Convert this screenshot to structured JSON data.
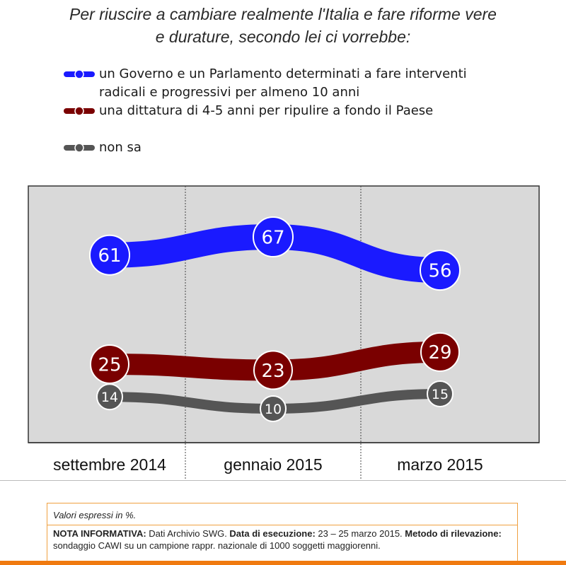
{
  "title_line1": "Per riuscire a cambiare realmente l'Italia e fare riforme vere",
  "title_line2": "e durature, secondo lei ci vorrebbe:",
  "legend": [
    {
      "label_line1": "un Governo e un Parlamento determinati a fare interventi",
      "label_line2": "radicali e progressivi per almeno 10 anni",
      "color": "#1a1aff"
    },
    {
      "label_line1": "una dittatura di 4-5 anni per ripulire a fondo il Paese",
      "label_line2": "",
      "color": "#7a0000"
    },
    {
      "label_line1": "non sa",
      "label_line2": "",
      "color": "#555555"
    }
  ],
  "chart_data": {
    "type": "line",
    "categories": [
      "settembre 2014",
      "gennaio 2015",
      "marzo 2015"
    ],
    "series": [
      {
        "name": "un Governo e un Parlamento determinati a fare interventi radicali e progressivi per almeno 10 anni",
        "values": [
          61,
          67,
          56
        ],
        "color": "#1a1aff"
      },
      {
        "name": "una dittatura di 4-5 anni per ripulire a fondo il Paese",
        "values": [
          25,
          23,
          29
        ],
        "color": "#7a0000"
      },
      {
        "name": "non sa",
        "values": [
          14,
          10,
          15
        ],
        "color": "#555555"
      }
    ],
    "plot_background": "#d9d9d9"
  },
  "note": {
    "units": "Valori espressi in %.",
    "nota_label": "NOTA INFORMATIVA:",
    "nota_text": " Dati Archivio SWG. ",
    "data_label": "Data di esecuzione:",
    "data_text": " 23 – 25 marzo 2015. ",
    "metodo_label": "Metodo di rilevazione:",
    "metodo_text": " sondaggio CAWI su un campione rappr. nazionale di 1000 soggetti maggiorenni."
  }
}
